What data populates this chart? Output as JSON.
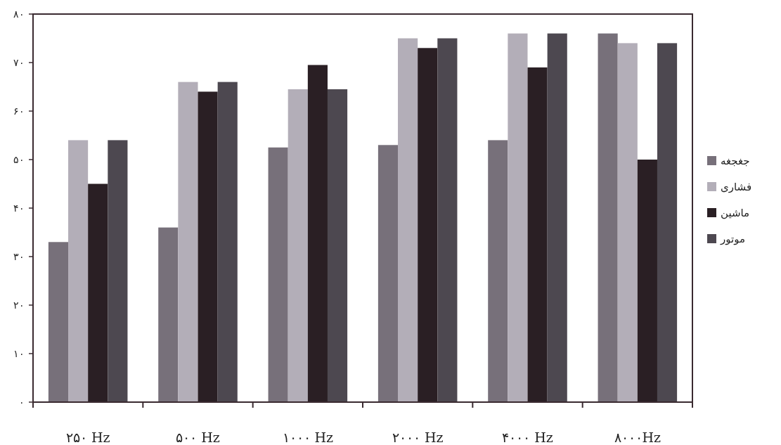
{
  "chart_data": {
    "type": "bar",
    "categories": [
      "۲۵۰ Hz",
      "۵۰۰ Hz",
      "۱۰۰۰ Hz",
      "۲۰۰۰ Hz",
      "۴۰۰۰ Hz",
      "۸۰۰۰Hz"
    ],
    "series": [
      {
        "name": "جغجغه",
        "color": "#77707a",
        "values": [
          33,
          36,
          52.5,
          53,
          54,
          76
        ]
      },
      {
        "name": "فشاری",
        "color": "#b3aeb8",
        "values": [
          54,
          66,
          64.5,
          75,
          76,
          74
        ]
      },
      {
        "name": "ماشین",
        "color": "#2a1f24",
        "values": [
          45,
          64,
          69.5,
          73,
          69,
          50
        ]
      },
      {
        "name": "موتور",
        "color": "#4d4850",
        "values": [
          54,
          66,
          64.5,
          75,
          76,
          74
        ]
      }
    ],
    "ylim": [
      0,
      80
    ],
    "yticks": [
      {
        "value": 0,
        "label": "۰"
      },
      {
        "value": 10,
        "label": "۱۰"
      },
      {
        "value": 20,
        "label": "۲۰"
      },
      {
        "value": 30,
        "label": "۳۰"
      },
      {
        "value": 40,
        "label": "۴۰"
      },
      {
        "value": 50,
        "label": "۵۰"
      },
      {
        "value": 60,
        "label": "۶۰"
      },
      {
        "value": 70,
        "label": "۷۰"
      },
      {
        "value": 80,
        "label": "۸۰"
      }
    ],
    "legend": "right",
    "grid": false
  }
}
